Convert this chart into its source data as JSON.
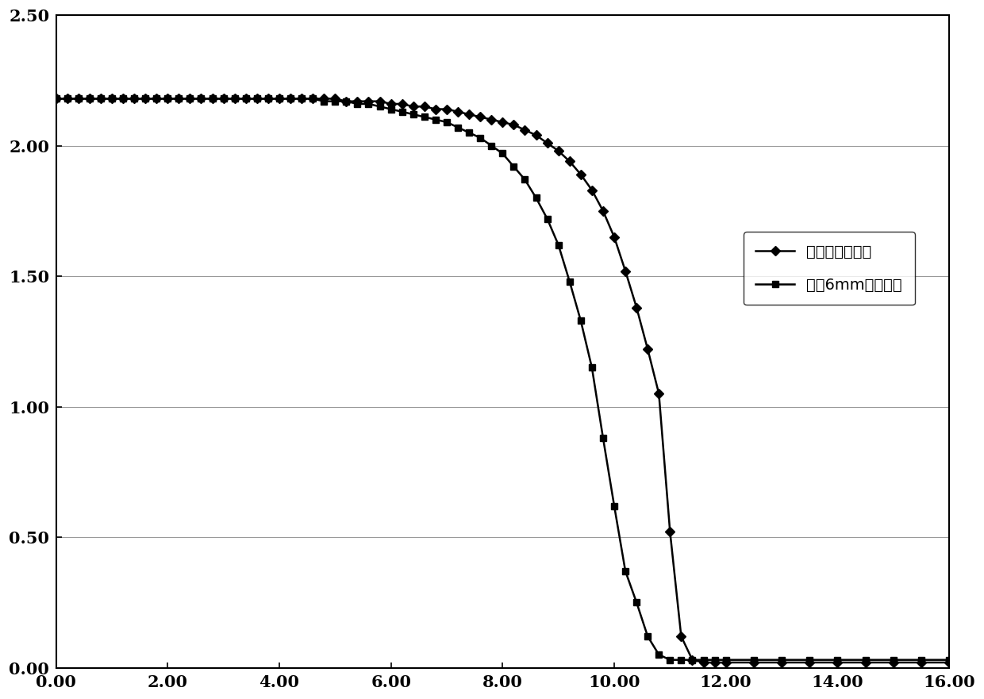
{
  "title": "",
  "xlabel": "",
  "ylabel": "",
  "xlim": [
    0,
    16
  ],
  "ylim": [
    0,
    2.5
  ],
  "xticks": [
    0.0,
    2.0,
    4.0,
    6.0,
    8.0,
    10.0,
    12.0,
    14.0,
    16.0
  ],
  "yticks": [
    0.0,
    0.5,
    1.0,
    1.5,
    2.0,
    2.5
  ],
  "legend1": "中心点扩展电阵",
  "legend2": "距辶6mm扩展电阵",
  "line_color": "#000000",
  "background_color": "#ffffff",
  "series1_x": [
    0.0,
    0.2,
    0.4,
    0.6,
    0.8,
    1.0,
    1.2,
    1.4,
    1.6,
    1.8,
    2.0,
    2.2,
    2.4,
    2.6,
    2.8,
    3.0,
    3.2,
    3.4,
    3.6,
    3.8,
    4.0,
    4.2,
    4.4,
    4.6,
    4.8,
    5.0,
    5.2,
    5.4,
    5.6,
    5.8,
    6.0,
    6.2,
    6.4,
    6.6,
    6.8,
    7.0,
    7.2,
    7.4,
    7.6,
    7.8,
    8.0,
    8.2,
    8.4,
    8.6,
    8.8,
    9.0,
    9.2,
    9.4,
    9.6,
    9.8,
    10.0,
    10.2,
    10.4,
    10.6,
    10.8,
    11.0,
    11.2,
    11.4,
    11.6,
    11.8,
    12.0,
    12.5,
    13.0,
    13.5,
    14.0,
    14.5,
    15.0,
    15.5,
    16.0
  ],
  "series1_y": [
    2.18,
    2.18,
    2.18,
    2.18,
    2.18,
    2.18,
    2.18,
    2.18,
    2.18,
    2.18,
    2.18,
    2.18,
    2.18,
    2.18,
    2.18,
    2.18,
    2.18,
    2.18,
    2.18,
    2.18,
    2.18,
    2.18,
    2.18,
    2.18,
    2.18,
    2.18,
    2.17,
    2.17,
    2.17,
    2.17,
    2.16,
    2.16,
    2.15,
    2.15,
    2.14,
    2.14,
    2.13,
    2.12,
    2.11,
    2.1,
    2.09,
    2.08,
    2.06,
    2.04,
    2.01,
    1.98,
    1.94,
    1.89,
    1.83,
    1.75,
    1.65,
    1.52,
    1.38,
    1.22,
    1.05,
    0.52,
    0.12,
    0.03,
    0.02,
    0.02,
    0.02,
    0.02,
    0.02,
    0.02,
    0.02,
    0.02,
    0.02,
    0.02,
    0.02
  ],
  "series2_x": [
    0.0,
    0.2,
    0.4,
    0.6,
    0.8,
    1.0,
    1.2,
    1.4,
    1.6,
    1.8,
    2.0,
    2.2,
    2.4,
    2.6,
    2.8,
    3.0,
    3.2,
    3.4,
    3.6,
    3.8,
    4.0,
    4.2,
    4.4,
    4.6,
    4.8,
    5.0,
    5.2,
    5.4,
    5.6,
    5.8,
    6.0,
    6.2,
    6.4,
    6.6,
    6.8,
    7.0,
    7.2,
    7.4,
    7.6,
    7.8,
    8.0,
    8.2,
    8.4,
    8.6,
    8.8,
    9.0,
    9.2,
    9.4,
    9.6,
    9.8,
    10.0,
    10.2,
    10.4,
    10.6,
    10.8,
    11.0,
    11.2,
    11.4,
    11.6,
    11.8,
    12.0,
    12.5,
    13.0,
    13.5,
    14.0,
    14.5,
    15.0,
    15.5,
    16.0
  ],
  "series2_y": [
    2.18,
    2.18,
    2.18,
    2.18,
    2.18,
    2.18,
    2.18,
    2.18,
    2.18,
    2.18,
    2.18,
    2.18,
    2.18,
    2.18,
    2.18,
    2.18,
    2.18,
    2.18,
    2.18,
    2.18,
    2.18,
    2.18,
    2.18,
    2.18,
    2.17,
    2.17,
    2.17,
    2.16,
    2.16,
    2.15,
    2.14,
    2.13,
    2.12,
    2.11,
    2.1,
    2.09,
    2.07,
    2.05,
    2.03,
    2.0,
    1.97,
    1.92,
    1.87,
    1.8,
    1.72,
    1.62,
    1.48,
    1.33,
    1.15,
    0.88,
    0.62,
    0.37,
    0.25,
    0.12,
    0.05,
    0.03,
    0.03,
    0.03,
    0.03,
    0.03,
    0.03,
    0.03,
    0.03,
    0.03,
    0.03,
    0.03,
    0.03,
    0.03,
    0.03
  ]
}
